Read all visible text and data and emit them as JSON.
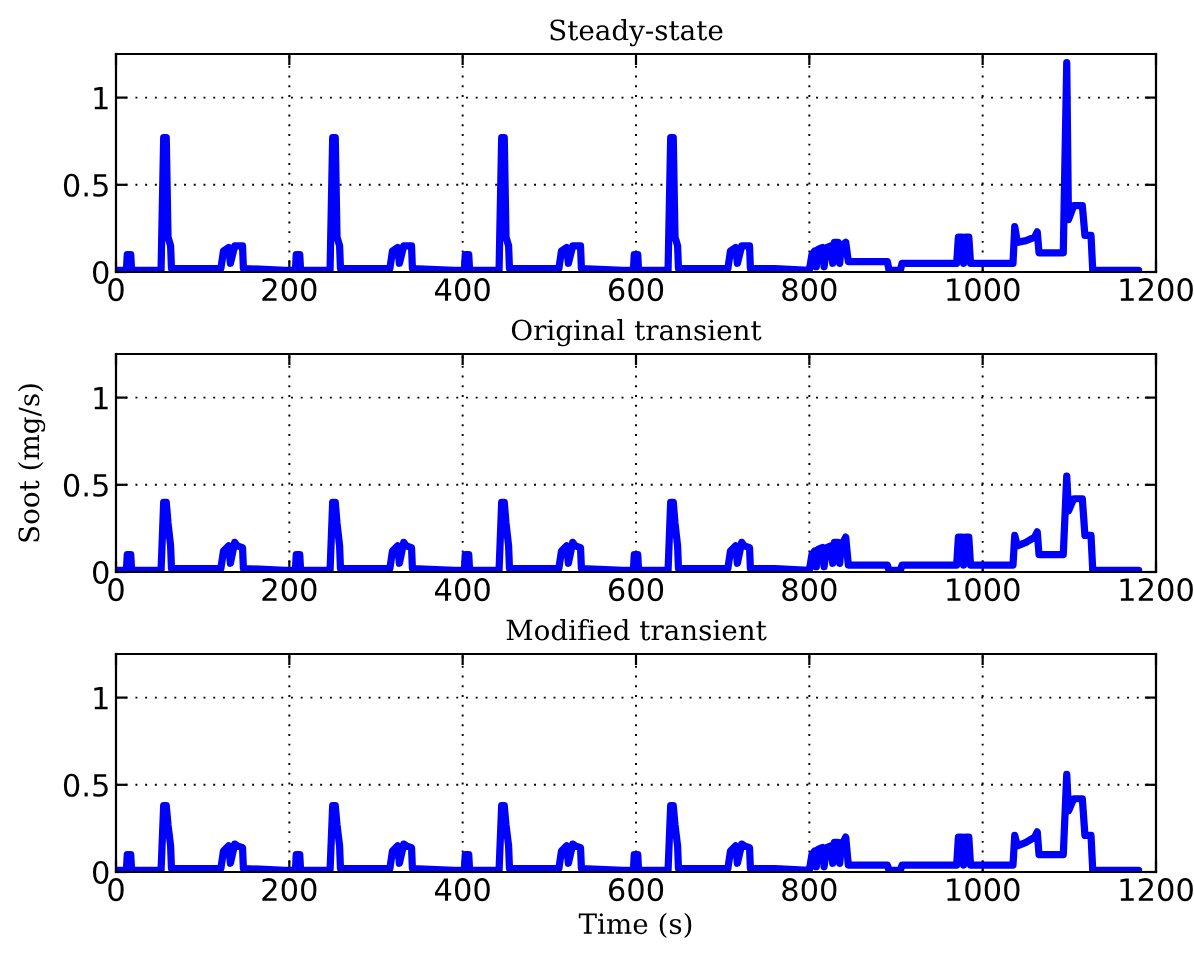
{
  "chart_data": [
    {
      "type": "line",
      "title": "Steady-state",
      "xlim": [
        0,
        1200
      ],
      "ylim": [
        0,
        1.25
      ],
      "xticks": [
        0,
        200,
        400,
        600,
        800,
        1000,
        1200
      ],
      "yticks": [
        0,
        0.5,
        1
      ],
      "grid": true,
      "line_style": "solid",
      "x": [
        0,
        12,
        13,
        17,
        18,
        52,
        55,
        58,
        60,
        63,
        64,
        121,
        124,
        130,
        132,
        137,
        140,
        146,
        147,
        195,
        207,
        208,
        212,
        213,
        247,
        250,
        253,
        255,
        258,
        259,
        316,
        319,
        325,
        327,
        332,
        335,
        341,
        342,
        390,
        402,
        403,
        407,
        408,
        442,
        445,
        448,
        450,
        453,
        454,
        511,
        514,
        520,
        522,
        527,
        530,
        536,
        537,
        585,
        597,
        598,
        602,
        603,
        637,
        640,
        643,
        645,
        648,
        649,
        706,
        709,
        715,
        717,
        722,
        725,
        731,
        732,
        760,
        800,
        803,
        806,
        808,
        810,
        815,
        817,
        820,
        825,
        827,
        829,
        833,
        835,
        837,
        842,
        845,
        890,
        892,
        905,
        907,
        970,
        972,
        976,
        978,
        980,
        984,
        986,
        1035,
        1037,
        1040,
        1050,
        1060,
        1063,
        1065,
        1093,
        1097,
        1099,
        1105,
        1115,
        1118,
        1125,
        1127,
        1180
      ],
      "series": [
        {
          "color": "#0000ff",
          "values": [
            0.01,
            0.01,
            0.1,
            0.1,
            0.01,
            0.01,
            0.77,
            0.77,
            0.2,
            0.15,
            0.02,
            0.02,
            0.12,
            0.14,
            0.05,
            0.15,
            0.15,
            0.15,
            0.02,
            0.01,
            0.01,
            0.1,
            0.1,
            0.01,
            0.01,
            0.77,
            0.77,
            0.2,
            0.15,
            0.02,
            0.02,
            0.12,
            0.14,
            0.05,
            0.15,
            0.15,
            0.15,
            0.02,
            0.01,
            0.01,
            0.1,
            0.1,
            0.01,
            0.01,
            0.77,
            0.77,
            0.2,
            0.15,
            0.02,
            0.02,
            0.12,
            0.14,
            0.05,
            0.15,
            0.15,
            0.15,
            0.02,
            0.01,
            0.01,
            0.1,
            0.1,
            0.01,
            0.01,
            0.77,
            0.77,
            0.2,
            0.15,
            0.02,
            0.02,
            0.12,
            0.14,
            0.05,
            0.15,
            0.15,
            0.15,
            0.02,
            0.02,
            0.01,
            0.1,
            0.12,
            0.03,
            0.13,
            0.14,
            0.03,
            0.14,
            0.15,
            0.05,
            0.17,
            0.17,
            0.05,
            0.15,
            0.17,
            0.06,
            0.06,
            0.01,
            0.01,
            0.05,
            0.05,
            0.2,
            0.2,
            0.05,
            0.2,
            0.2,
            0.05,
            0.05,
            0.26,
            0.17,
            0.18,
            0.2,
            0.23,
            0.11,
            0.11,
            1.2,
            0.3,
            0.38,
            0.38,
            0.21,
            0.21,
            0.01,
            0.01
          ]
        }
      ]
    },
    {
      "type": "line",
      "title": "Original transient",
      "ylabel": "Soot (mg/s)",
      "xlim": [
        0,
        1200
      ],
      "ylim": [
        0,
        1.25
      ],
      "xticks": [
        0,
        200,
        400,
        600,
        800,
        1000,
        1200
      ],
      "yticks": [
        0,
        0.5,
        1
      ],
      "grid": true,
      "line_style": "solid",
      "x": [
        0,
        12,
        13,
        17,
        18,
        52,
        55,
        58,
        60,
        63,
        64,
        121,
        124,
        130,
        132,
        137,
        140,
        146,
        147,
        195,
        207,
        208,
        212,
        213,
        247,
        250,
        253,
        255,
        258,
        259,
        316,
        319,
        325,
        327,
        332,
        335,
        341,
        342,
        390,
        402,
        403,
        407,
        408,
        442,
        445,
        448,
        450,
        453,
        454,
        511,
        514,
        520,
        522,
        527,
        530,
        536,
        537,
        585,
        597,
        598,
        602,
        603,
        637,
        640,
        643,
        645,
        648,
        649,
        706,
        709,
        715,
        717,
        722,
        725,
        731,
        732,
        760,
        800,
        803,
        806,
        808,
        810,
        815,
        817,
        820,
        825,
        827,
        829,
        833,
        835,
        837,
        842,
        845,
        890,
        892,
        905,
        907,
        970,
        972,
        976,
        978,
        980,
        984,
        986,
        1035,
        1037,
        1040,
        1050,
        1060,
        1063,
        1065,
        1093,
        1097,
        1099,
        1105,
        1115,
        1118,
        1125,
        1127,
        1180
      ],
      "series": [
        {
          "color": "#0000ff",
          "values": [
            0.01,
            0.01,
            0.1,
            0.1,
            0.01,
            0.01,
            0.4,
            0.4,
            0.28,
            0.15,
            0.02,
            0.02,
            0.12,
            0.15,
            0.05,
            0.17,
            0.15,
            0.14,
            0.02,
            0.01,
            0.01,
            0.1,
            0.1,
            0.01,
            0.01,
            0.4,
            0.4,
            0.28,
            0.15,
            0.02,
            0.02,
            0.12,
            0.15,
            0.05,
            0.17,
            0.15,
            0.14,
            0.02,
            0.01,
            0.01,
            0.1,
            0.1,
            0.01,
            0.01,
            0.4,
            0.4,
            0.28,
            0.15,
            0.02,
            0.02,
            0.12,
            0.15,
            0.05,
            0.17,
            0.15,
            0.14,
            0.02,
            0.01,
            0.01,
            0.1,
            0.1,
            0.01,
            0.01,
            0.4,
            0.4,
            0.28,
            0.15,
            0.02,
            0.02,
            0.12,
            0.15,
            0.05,
            0.17,
            0.15,
            0.14,
            0.02,
            0.02,
            0.01,
            0.1,
            0.12,
            0.03,
            0.13,
            0.14,
            0.03,
            0.14,
            0.15,
            0.05,
            0.17,
            0.17,
            0.05,
            0.15,
            0.2,
            0.04,
            0.04,
            0.01,
            0.01,
            0.04,
            0.04,
            0.2,
            0.2,
            0.04,
            0.2,
            0.2,
            0.04,
            0.04,
            0.21,
            0.15,
            0.17,
            0.2,
            0.23,
            0.1,
            0.1,
            0.55,
            0.35,
            0.42,
            0.42,
            0.21,
            0.21,
            0.01,
            0.01
          ]
        }
      ]
    },
    {
      "type": "line",
      "title": "Modified transient",
      "xlabel": "Time (s)",
      "xlim": [
        0,
        1200
      ],
      "ylim": [
        0,
        1.25
      ],
      "xticks": [
        0,
        200,
        400,
        600,
        800,
        1000,
        1200
      ],
      "yticks": [
        0,
        0.5,
        1
      ],
      "grid": true,
      "line_style": "solid",
      "x": [
        0,
        12,
        13,
        17,
        18,
        52,
        55,
        58,
        60,
        63,
        64,
        121,
        124,
        130,
        132,
        137,
        140,
        146,
        147,
        195,
        207,
        208,
        212,
        213,
        247,
        250,
        253,
        255,
        258,
        259,
        316,
        319,
        325,
        327,
        332,
        335,
        341,
        342,
        390,
        402,
        403,
        407,
        408,
        442,
        445,
        448,
        450,
        453,
        454,
        511,
        514,
        520,
        522,
        527,
        530,
        536,
        537,
        585,
        597,
        598,
        602,
        603,
        637,
        640,
        643,
        645,
        648,
        649,
        706,
        709,
        715,
        717,
        722,
        725,
        731,
        732,
        760,
        800,
        803,
        806,
        808,
        810,
        815,
        817,
        820,
        825,
        827,
        829,
        833,
        835,
        837,
        842,
        845,
        890,
        892,
        905,
        907,
        970,
        972,
        976,
        978,
        980,
        984,
        986,
        1035,
        1037,
        1040,
        1050,
        1060,
        1063,
        1065,
        1093,
        1097,
        1099,
        1105,
        1115,
        1118,
        1125,
        1127,
        1180
      ],
      "series": [
        {
          "color": "#0000ff",
          "values": [
            0.01,
            0.01,
            0.1,
            0.1,
            0.01,
            0.01,
            0.38,
            0.38,
            0.27,
            0.15,
            0.02,
            0.02,
            0.12,
            0.15,
            0.05,
            0.16,
            0.15,
            0.14,
            0.02,
            0.01,
            0.01,
            0.1,
            0.1,
            0.01,
            0.01,
            0.38,
            0.38,
            0.27,
            0.15,
            0.02,
            0.02,
            0.12,
            0.15,
            0.05,
            0.16,
            0.15,
            0.14,
            0.02,
            0.01,
            0.01,
            0.1,
            0.1,
            0.01,
            0.01,
            0.38,
            0.38,
            0.27,
            0.15,
            0.02,
            0.02,
            0.12,
            0.15,
            0.05,
            0.16,
            0.15,
            0.14,
            0.02,
            0.01,
            0.01,
            0.1,
            0.1,
            0.01,
            0.01,
            0.38,
            0.38,
            0.27,
            0.15,
            0.02,
            0.02,
            0.12,
            0.15,
            0.05,
            0.16,
            0.15,
            0.14,
            0.02,
            0.02,
            0.01,
            0.1,
            0.12,
            0.03,
            0.13,
            0.14,
            0.03,
            0.14,
            0.15,
            0.05,
            0.17,
            0.17,
            0.05,
            0.15,
            0.2,
            0.04,
            0.04,
            0.01,
            0.01,
            0.04,
            0.04,
            0.2,
            0.2,
            0.04,
            0.2,
            0.2,
            0.04,
            0.04,
            0.21,
            0.15,
            0.17,
            0.2,
            0.23,
            0.1,
            0.1,
            0.56,
            0.35,
            0.42,
            0.42,
            0.21,
            0.21,
            0.01,
            0.01
          ]
        }
      ]
    }
  ]
}
